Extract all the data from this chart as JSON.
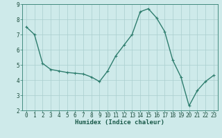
{
  "x": [
    0,
    1,
    2,
    3,
    4,
    5,
    6,
    7,
    8,
    9,
    10,
    11,
    12,
    13,
    14,
    15,
    16,
    17,
    18,
    19,
    20,
    21,
    22,
    23
  ],
  "y": [
    7.5,
    7.0,
    5.1,
    4.7,
    4.6,
    4.5,
    4.45,
    4.4,
    4.2,
    3.9,
    4.6,
    5.6,
    6.3,
    7.0,
    8.5,
    8.7,
    8.1,
    7.2,
    5.3,
    4.2,
    2.3,
    3.3,
    3.9,
    4.3
  ],
  "line_color": "#2e7d6e",
  "marker": "+",
  "marker_size": 3,
  "bg_color": "#ceeaea",
  "grid_color": "#aacece",
  "xlabel": "Humidex (Indice chaleur)",
  "ylim": [
    2,
    9
  ],
  "xlim": [
    -0.5,
    23.5
  ],
  "yticks": [
    2,
    3,
    4,
    5,
    6,
    7,
    8,
    9
  ],
  "xticks": [
    0,
    1,
    2,
    3,
    4,
    5,
    6,
    7,
    8,
    9,
    10,
    11,
    12,
    13,
    14,
    15,
    16,
    17,
    18,
    19,
    20,
    21,
    22,
    23
  ],
  "tick_label_size": 5.5,
  "xlabel_size": 6.5,
  "line_width": 1.0
}
